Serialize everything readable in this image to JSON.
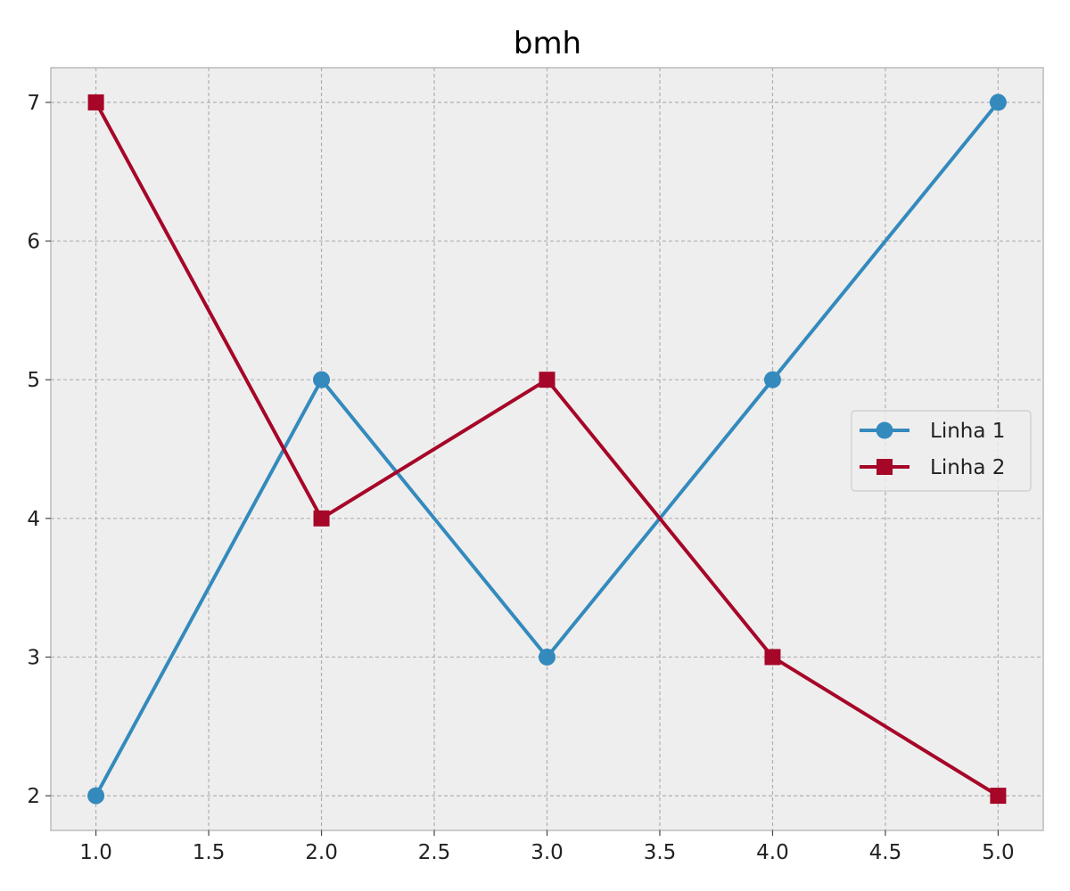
{
  "chart_data": {
    "type": "line",
    "title": "bmh",
    "xlabel": "",
    "ylabel": "",
    "xlim": [
      0.8,
      5.2
    ],
    "ylim": [
      1.75,
      7.25
    ],
    "x_ticks": [
      "1.0",
      "1.5",
      "2.0",
      "2.5",
      "3.0",
      "3.5",
      "4.0",
      "4.5",
      "5.0"
    ],
    "x_tick_values": [
      1.0,
      1.5,
      2.0,
      2.5,
      3.0,
      3.5,
      4.0,
      4.5,
      5.0
    ],
    "y_ticks": [
      "2",
      "3",
      "4",
      "5",
      "6",
      "7"
    ],
    "y_tick_values": [
      2,
      3,
      4,
      5,
      6,
      7
    ],
    "grid": true,
    "legend_position": "center-right",
    "background_color": "#eeeeee",
    "series": [
      {
        "name": "Linha 1",
        "x": [
          1,
          2,
          3,
          4,
          5
        ],
        "y": [
          2,
          5,
          3,
          5,
          7
        ],
        "color": "#348abd",
        "marker": "circle"
      },
      {
        "name": "Linha 2",
        "x": [
          1,
          2,
          3,
          4,
          5
        ],
        "y": [
          7,
          4,
          5,
          3,
          2
        ],
        "color": "#a60628",
        "marker": "square"
      }
    ]
  }
}
